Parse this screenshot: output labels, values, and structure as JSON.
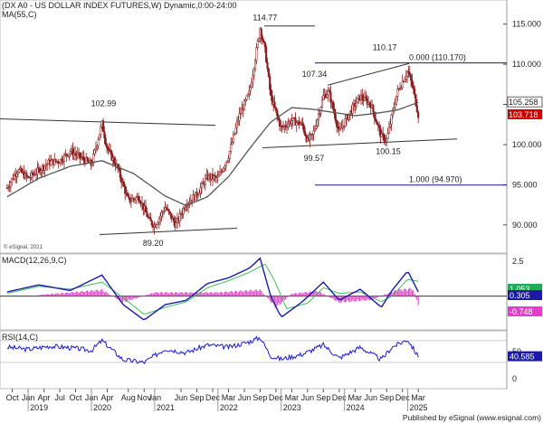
{
  "chart_data": [
    {
      "type": "candlestick",
      "panel": "price",
      "title": "(DX A0 - US DOLLAR INDEX FUTURES,W) Dynamic,0:00-24:00",
      "indicator_label": "MA(55,C)",
      "watermark": "© eSignal, 2021",
      "ylim": [
        86.5,
        118.0
      ],
      "y_ticks": [
        "115.000",
        "110.000",
        "105.000",
        "100.000",
        "95.000",
        "90.000"
      ],
      "y_tick_values": [
        115,
        110,
        105,
        100,
        95,
        90
      ],
      "last_values": {
        "ma": "105.258",
        "close": "103.718"
      },
      "annotations": [
        {
          "label": "102.99",
          "x": "2020-03",
          "y": 102.99
        },
        {
          "label": "89.20",
          "x": "2021-01",
          "y": 89.2
        },
        {
          "label": "114.77",
          "x": "2022-09",
          "y": 114.77
        },
        {
          "label": "107.34",
          "x": "2023-07",
          "y": 107.34
        },
        {
          "label": "99.57",
          "x": "2023-07",
          "y": 99.57
        },
        {
          "label": "110.17",
          "x": "2024-12",
          "y": 110.17
        },
        {
          "label": "100.15",
          "x": "2024-09",
          "y": 100.15
        }
      ],
      "fib_levels": [
        {
          "label": "0.000 (110.170)",
          "value": 110.17
        },
        {
          "label": "1.000 (94.970)",
          "value": 94.97
        }
      ],
      "series": [
        {
          "name": "DX A0",
          "kind": "ohlc-weekly",
          "path_points": [
            [
              "2018-09",
              94.6
            ],
            [
              "2018-11",
              96.9
            ],
            [
              "2019-01",
              95.8
            ],
            [
              "2019-03",
              96.8
            ],
            [
              "2019-05",
              97.8
            ],
            [
              "2019-07",
              98.0
            ],
            [
              "2019-09",
              99.2
            ],
            [
              "2019-11",
              98.4
            ],
            [
              "2020-01",
              97.5
            ],
            [
              "2020-03",
              102.6
            ],
            [
              "2020-04",
              99.5
            ],
            [
              "2020-06",
              97.0
            ],
            [
              "2020-08",
              93.0
            ],
            [
              "2020-10",
              93.5
            ],
            [
              "2020-12",
              90.5
            ],
            [
              "2021-01",
              89.9
            ],
            [
              "2021-03",
              92.2
            ],
            [
              "2021-05",
              90.0
            ],
            [
              "2021-07",
              92.7
            ],
            [
              "2021-09",
              93.8
            ],
            [
              "2021-11",
              96.0
            ],
            [
              "2022-01",
              95.8
            ],
            [
              "2022-03",
              98.6
            ],
            [
              "2022-05",
              103.5
            ],
            [
              "2022-07",
              106.5
            ],
            [
              "2022-09",
              114.5
            ],
            [
              "2022-10",
              111.5
            ],
            [
              "2022-11",
              106.0
            ],
            [
              "2023-01",
              102.0
            ],
            [
              "2023-03",
              103.0
            ],
            [
              "2023-05",
              102.5
            ],
            [
              "2023-06",
              100.4
            ],
            [
              "2023-07",
              101.2
            ],
            [
              "2023-09",
              106.0
            ],
            [
              "2023-10",
              106.6
            ],
            [
              "2023-12",
              101.5
            ],
            [
              "2024-02",
              104.0
            ],
            [
              "2024-04",
              106.0
            ],
            [
              "2024-06",
              105.0
            ],
            [
              "2024-08",
              101.0
            ],
            [
              "2024-09",
              100.6
            ],
            [
              "2024-11",
              106.5
            ],
            [
              "2025-01",
              109.2
            ],
            [
              "2025-02",
              107.0
            ],
            [
              "2025-03",
              103.7
            ]
          ]
        },
        {
          "name": "MA(55,C)",
          "path_points": [
            [
              "2018-09",
              93.5
            ],
            [
              "2019-03",
              95.8
            ],
            [
              "2019-09",
              97.3
            ],
            [
              "2020-03",
              98.0
            ],
            [
              "2020-09",
              96.4
            ],
            [
              "2021-03",
              93.6
            ],
            [
              "2021-07",
              92.4
            ],
            [
              "2021-11",
              93.5
            ],
            [
              "2022-03",
              96.0
            ],
            [
              "2022-07",
              99.5
            ],
            [
              "2022-11",
              102.8
            ],
            [
              "2023-03",
              104.6
            ],
            [
              "2023-07",
              104.4
            ],
            [
              "2023-11",
              104.0
            ],
            [
              "2024-03",
              103.6
            ],
            [
              "2024-07",
              103.9
            ],
            [
              "2024-11",
              104.3
            ],
            [
              "2025-03",
              105.26
            ]
          ]
        }
      ]
    },
    {
      "type": "line",
      "panel": "macd",
      "title": "MACD(12,26,9,C)",
      "ylim": [
        -2.4,
        3.0
      ],
      "y_ticks": [
        "2.5"
      ],
      "y_tick_values": [
        2.5
      ],
      "last_values": [
        "1.053",
        "0.305",
        "-0.748"
      ],
      "series": [
        {
          "name": "MACD",
          "path_points": [
            [
              "2018-09",
              0.3
            ],
            [
              "2019-03",
              0.8
            ],
            [
              "2019-09",
              0.4
            ],
            [
              "2020-03",
              1.5
            ],
            [
              "2020-07",
              -0.6
            ],
            [
              "2020-11",
              -1.7
            ],
            [
              "2021-03",
              -0.6
            ],
            [
              "2021-07",
              -0.3
            ],
            [
              "2021-11",
              0.9
            ],
            [
              "2022-03",
              1.3
            ],
            [
              "2022-07",
              2.0
            ],
            [
              "2022-09",
              2.7
            ],
            [
              "2022-11",
              0.0
            ],
            [
              "2023-01",
              -1.5
            ],
            [
              "2023-05",
              -0.4
            ],
            [
              "2023-09",
              1.0
            ],
            [
              "2023-12",
              -0.3
            ],
            [
              "2024-04",
              0.5
            ],
            [
              "2024-08",
              -0.8
            ],
            [
              "2024-10",
              0.4
            ],
            [
              "2025-01",
              1.8
            ],
            [
              "2025-03",
              0.3
            ]
          ]
        },
        {
          "name": "Signal",
          "path_points": [
            [
              "2018-09",
              0.2
            ],
            [
              "2019-03",
              0.7
            ],
            [
              "2019-09",
              0.5
            ],
            [
              "2020-03",
              1.0
            ],
            [
              "2020-07",
              -0.1
            ],
            [
              "2020-11",
              -1.3
            ],
            [
              "2021-03",
              -0.8
            ],
            [
              "2021-07",
              -0.4
            ],
            [
              "2021-11",
              0.6
            ],
            [
              "2022-03",
              1.1
            ],
            [
              "2022-07",
              1.7
            ],
            [
              "2022-10",
              2.3
            ],
            [
              "2022-12",
              0.9
            ],
            [
              "2023-02",
              -0.9
            ],
            [
              "2023-06",
              -0.5
            ],
            [
              "2023-09",
              0.6
            ],
            [
              "2023-12",
              0.2
            ],
            [
              "2024-04",
              0.3
            ],
            [
              "2024-08",
              -0.4
            ],
            [
              "2024-10",
              0.0
            ],
            [
              "2025-01",
              1.2
            ],
            [
              "2025-03",
              1.05
            ]
          ]
        },
        {
          "name": "Histogram",
          "kind": "bars",
          "path_points": [
            [
              "2019-03",
              0.1
            ],
            [
              "2020-03",
              0.5
            ],
            [
              "2020-07",
              -0.5
            ],
            [
              "2021-01",
              0.3
            ],
            [
              "2022-01",
              0.3
            ],
            [
              "2022-09",
              0.5
            ],
            [
              "2022-12",
              -0.9
            ],
            [
              "2023-03",
              0.2
            ],
            [
              "2023-08",
              0.4
            ],
            [
              "2023-12",
              -0.5
            ],
            [
              "2024-06",
              -0.3
            ],
            [
              "2024-11",
              0.5
            ],
            [
              "2025-02",
              0.6
            ],
            [
              "2025-03",
              -0.75
            ]
          ]
        }
      ]
    },
    {
      "type": "line",
      "panel": "rsi",
      "title": "RSI(14,C)",
      "ylim": [
        -18,
        88
      ],
      "y_ticks": [
        "50",
        "0"
      ],
      "y_tick_values": [
        50,
        0
      ],
      "last_values": [
        "40.585"
      ],
      "series": [
        {
          "name": "RSI",
          "path_points": [
            [
              "2018-09",
              58
            ],
            [
              "2019-01",
              54
            ],
            [
              "2019-05",
              60
            ],
            [
              "2019-09",
              57
            ],
            [
              "2020-01",
              52
            ],
            [
              "2020-03",
              70
            ],
            [
              "2020-07",
              35
            ],
            [
              "2020-11",
              30
            ],
            [
              "2021-03",
              55
            ],
            [
              "2021-07",
              48
            ],
            [
              "2021-11",
              62
            ],
            [
              "2022-03",
              58
            ],
            [
              "2022-07",
              68
            ],
            [
              "2022-09",
              76
            ],
            [
              "2022-11",
              42
            ],
            [
              "2023-01",
              36
            ],
            [
              "2023-05",
              45
            ],
            [
              "2023-09",
              62
            ],
            [
              "2023-12",
              38
            ],
            [
              "2024-04",
              58
            ],
            [
              "2024-08",
              35
            ],
            [
              "2024-10",
              58
            ],
            [
              "2025-01",
              72
            ],
            [
              "2025-03",
              40.6
            ]
          ]
        }
      ]
    }
  ],
  "x_axis": {
    "labels": [
      "Oct",
      "Jan",
      "Apr",
      "Jul",
      "Oct",
      "Jan",
      "Apr",
      "Aug",
      "Nov",
      "Jan",
      "Jun",
      "Sep",
      "Dec",
      "Mar",
      "Jun",
      "Sep",
      "Dec",
      "Mar",
      "Jun",
      "Sep",
      "Dec",
      "Mar",
      "Jun",
      "Sep",
      "Dec",
      "Mar"
    ],
    "label_dates": [
      "2018-10",
      "2019-01",
      "2019-04",
      "2019-07",
      "2019-10",
      "2020-01",
      "2020-04",
      "2020-08",
      "2020-11",
      "2021-01",
      "2021-06",
      "2021-09",
      "2021-12",
      "2022-03",
      "2022-06",
      "2022-09",
      "2022-12",
      "2023-03",
      "2023-06",
      "2023-09",
      "2023-12",
      "2024-03",
      "2024-06",
      "2024-09",
      "2024-12",
      "2025-03"
    ],
    "years": [
      "2019",
      "2020",
      "2021",
      "2022",
      "2023",
      "2024",
      "2025"
    ],
    "year_dates": [
      "2019-01",
      "2020-01",
      "2021-01",
      "2022-01",
      "2023-01",
      "2024-01",
      "2025-01"
    ]
  },
  "footer": "Published by eSignal (www.esignal.com)",
  "colors": {
    "candle": "#8b1a1a",
    "ma": "#555555",
    "macd": "#1a1aa6",
    "signal": "#3fbf5f",
    "histogram": "#e040c8",
    "rsi": "#1a1acc",
    "price_box": "#cc0000",
    "macd_box_1": "#22aa55",
    "macd_box_2": "#1a1aa6",
    "macd_box_3": "#e040c8"
  }
}
